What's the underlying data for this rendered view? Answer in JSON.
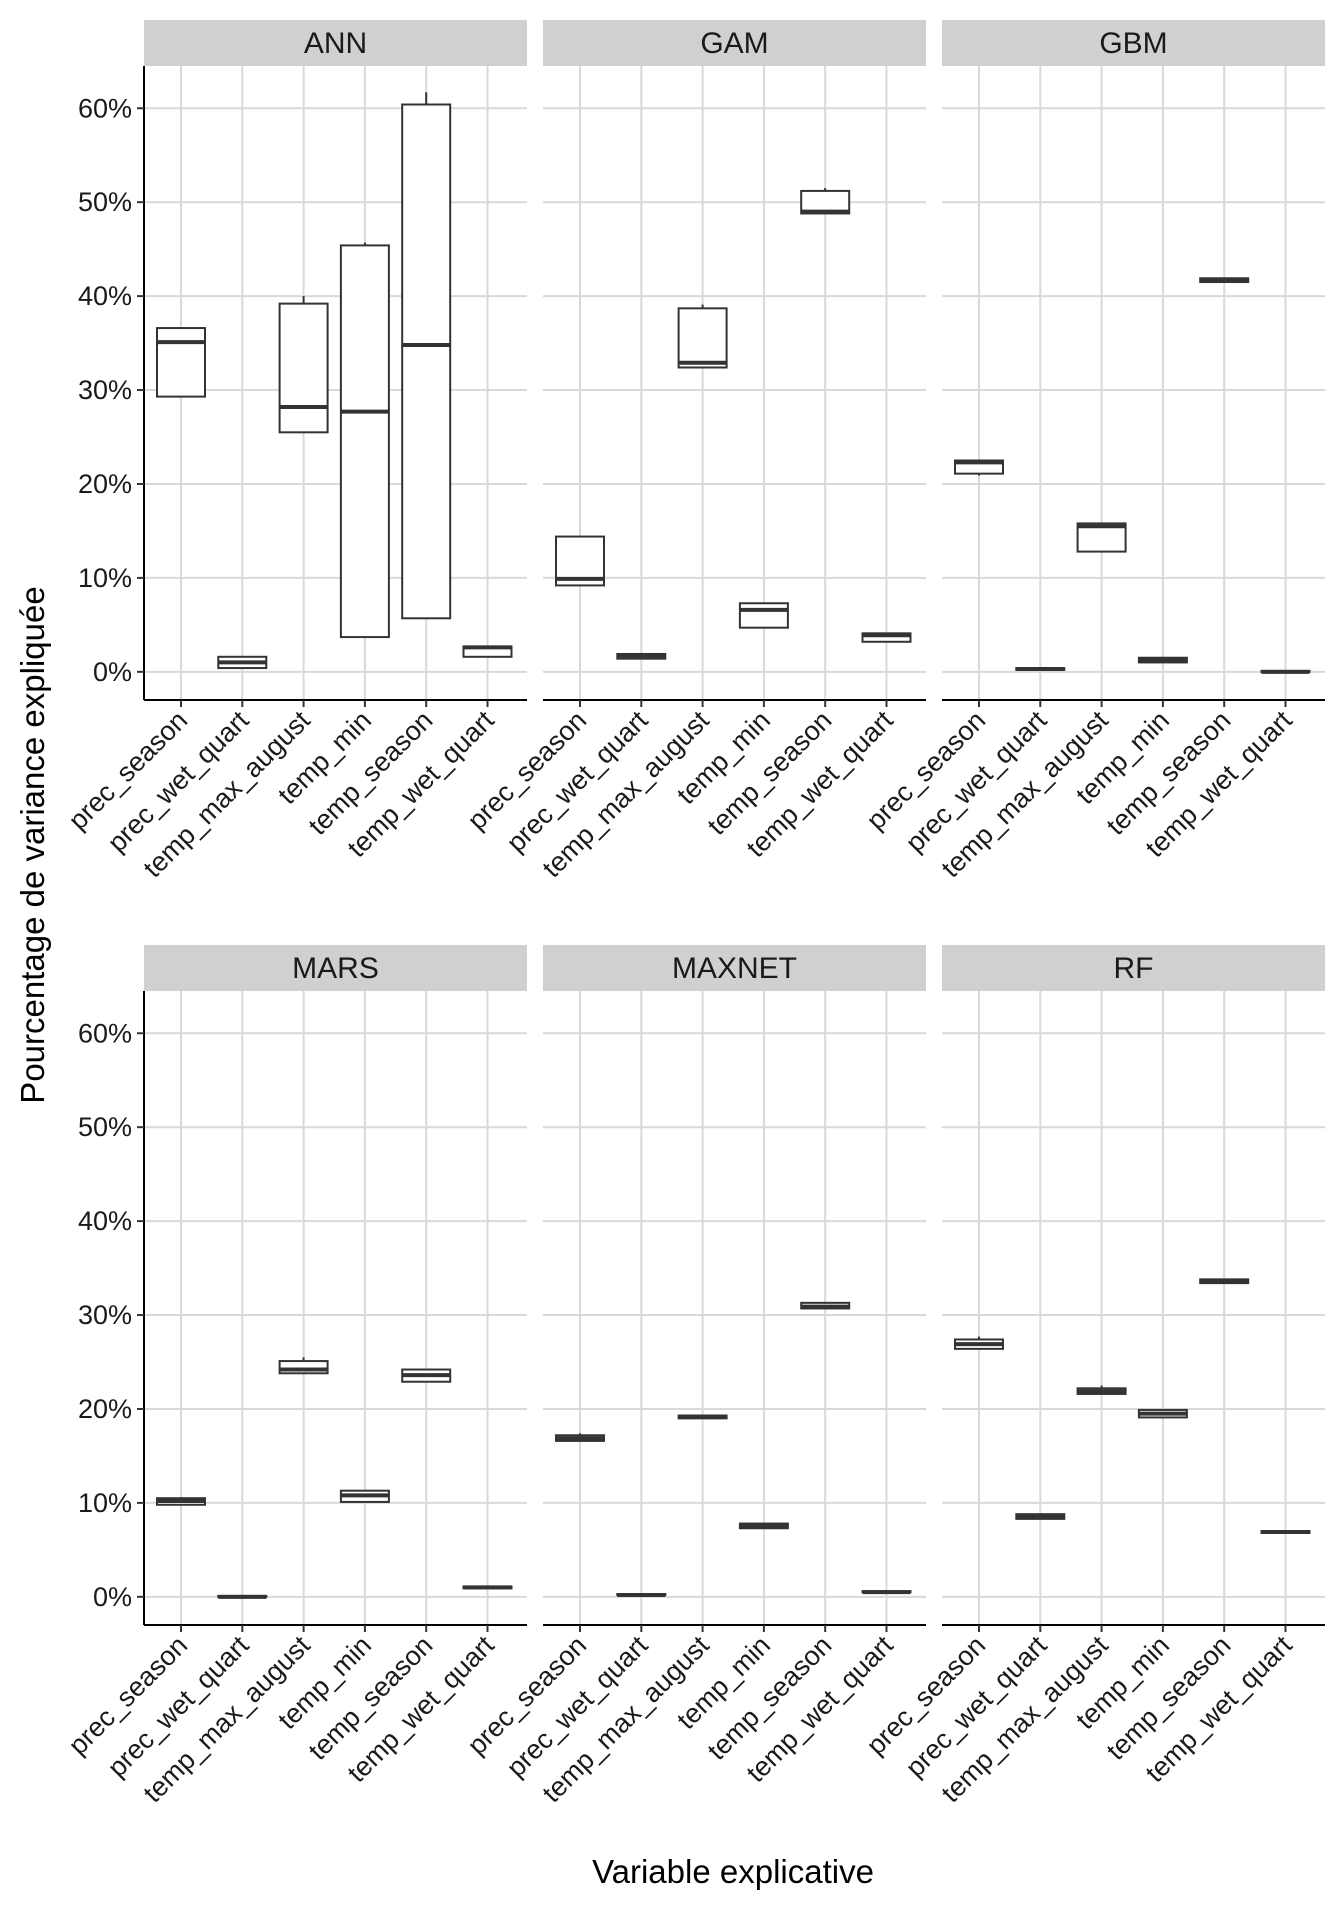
{
  "chart_data": {
    "type": "boxplot",
    "facet_layout": "2x3 grid, faceted by model",
    "xlabel": "Variable explicative",
    "ylabel": "Pourcentage de variance expliquée",
    "ylim": [
      -0.03,
      0.645
    ],
    "yticks": [
      0,
      0.1,
      0.2,
      0.3,
      0.4,
      0.5,
      0.6
    ],
    "ytick_labels": [
      "0%",
      "10%",
      "20%",
      "30%",
      "40%",
      "50%",
      "60%"
    ],
    "categories": [
      "prec_season",
      "prec_wet_quart",
      "temp_max_august",
      "temp_min",
      "temp_season",
      "temp_wet_quart"
    ],
    "panels": [
      {
        "name": "ANN",
        "boxes": [
          {
            "min": 0.293,
            "q1": 0.293,
            "median": 0.351,
            "q3": 0.366,
            "max": 0.366
          },
          {
            "min": 0.004,
            "q1": 0.004,
            "median": 0.01,
            "q3": 0.016,
            "max": 0.016
          },
          {
            "min": 0.255,
            "q1": 0.255,
            "median": 0.282,
            "q3": 0.392,
            "max": 0.4
          },
          {
            "min": 0.037,
            "q1": 0.037,
            "median": 0.277,
            "q3": 0.454,
            "max": 0.457
          },
          {
            "min": 0.057,
            "q1": 0.057,
            "median": 0.348,
            "q3": 0.604,
            "max": 0.617
          },
          {
            "min": 0.016,
            "q1": 0.016,
            "median": 0.026,
            "q3": 0.027,
            "max": 0.027
          }
        ]
      },
      {
        "name": "GAM",
        "boxes": [
          {
            "min": 0.092,
            "q1": 0.092,
            "median": 0.099,
            "q3": 0.144,
            "max": 0.144
          },
          {
            "min": 0.014,
            "q1": 0.014,
            "median": 0.017,
            "q3": 0.019,
            "max": 0.019
          },
          {
            "min": 0.324,
            "q1": 0.324,
            "median": 0.329,
            "q3": 0.387,
            "max": 0.391
          },
          {
            "min": 0.047,
            "q1": 0.047,
            "median": 0.066,
            "q3": 0.073,
            "max": 0.073
          },
          {
            "min": 0.488,
            "q1": 0.488,
            "median": 0.49,
            "q3": 0.512,
            "max": 0.515
          },
          {
            "min": 0.032,
            "q1": 0.032,
            "median": 0.039,
            "q3": 0.041,
            "max": 0.041
          }
        ]
      },
      {
        "name": "GBM",
        "boxes": [
          {
            "min": 0.209,
            "q1": 0.211,
            "median": 0.223,
            "q3": 0.225,
            "max": 0.225
          },
          {
            "min": 0.002,
            "q1": 0.002,
            "median": 0.003,
            "q3": 0.004,
            "max": 0.004
          },
          {
            "min": 0.128,
            "q1": 0.128,
            "median": 0.155,
            "q3": 0.158,
            "max": 0.158
          },
          {
            "min": 0.01,
            "q1": 0.01,
            "median": 0.012,
            "q3": 0.015,
            "max": 0.015
          },
          {
            "min": 0.415,
            "q1": 0.415,
            "median": 0.417,
            "q3": 0.419,
            "max": 0.419
          },
          {
            "min": 0.0,
            "q1": 0.0,
            "median": 0.0,
            "q3": 0.001,
            "max": 0.001
          }
        ]
      },
      {
        "name": "MARS",
        "boxes": [
          {
            "min": 0.098,
            "q1": 0.098,
            "median": 0.102,
            "q3": 0.105,
            "max": 0.105
          },
          {
            "min": 0.0,
            "q1": 0.0,
            "median": 0.0,
            "q3": 0.001,
            "max": 0.001
          },
          {
            "min": 0.238,
            "q1": 0.238,
            "median": 0.242,
            "q3": 0.251,
            "max": 0.255
          },
          {
            "min": 0.101,
            "q1": 0.101,
            "median": 0.108,
            "q3": 0.113,
            "max": 0.113
          },
          {
            "min": 0.229,
            "q1": 0.229,
            "median": 0.236,
            "q3": 0.242,
            "max": 0.242
          },
          {
            "min": 0.009,
            "q1": 0.009,
            "median": 0.01,
            "q3": 0.011,
            "max": 0.011
          }
        ]
      },
      {
        "name": "MAXNET",
        "boxes": [
          {
            "min": 0.166,
            "q1": 0.166,
            "median": 0.169,
            "q3": 0.172,
            "max": 0.174
          },
          {
            "min": 0.002,
            "q1": 0.002,
            "median": 0.002,
            "q3": 0.003,
            "max": 0.003
          },
          {
            "min": 0.19,
            "q1": 0.19,
            "median": 0.192,
            "q3": 0.193,
            "max": 0.193
          },
          {
            "min": 0.073,
            "q1": 0.073,
            "median": 0.076,
            "q3": 0.078,
            "max": 0.078
          },
          {
            "min": 0.307,
            "q1": 0.307,
            "median": 0.309,
            "q3": 0.313,
            "max": 0.313
          },
          {
            "min": 0.005,
            "q1": 0.005,
            "median": 0.005,
            "q3": 0.006,
            "max": 0.006
          }
        ]
      },
      {
        "name": "RF",
        "boxes": [
          {
            "min": 0.264,
            "q1": 0.264,
            "median": 0.269,
            "q3": 0.274,
            "max": 0.277
          },
          {
            "min": 0.083,
            "q1": 0.083,
            "median": 0.086,
            "q3": 0.088,
            "max": 0.088
          },
          {
            "min": 0.216,
            "q1": 0.216,
            "median": 0.219,
            "q3": 0.222,
            "max": 0.225
          },
          {
            "min": 0.191,
            "q1": 0.191,
            "median": 0.195,
            "q3": 0.199,
            "max": 0.199
          },
          {
            "min": 0.334,
            "q1": 0.334,
            "median": 0.336,
            "q3": 0.338,
            "max": 0.338
          },
          {
            "min": 0.068,
            "q1": 0.068,
            "median": 0.069,
            "q3": 0.07,
            "max": 0.07
          }
        ]
      }
    ]
  }
}
